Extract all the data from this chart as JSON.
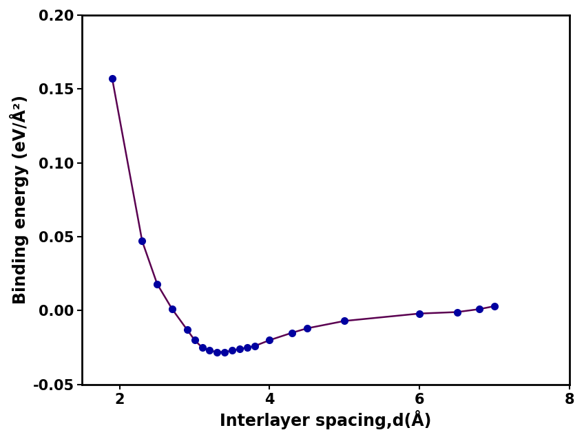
{
  "x": [
    1.9,
    2.3,
    2.5,
    2.7,
    2.9,
    3.0,
    3.1,
    3.2,
    3.3,
    3.4,
    3.5,
    3.6,
    3.7,
    3.8,
    4.0,
    4.3,
    4.5,
    5.0,
    6.0,
    6.5,
    6.8,
    7.0
  ],
  "y": [
    0.157,
    0.047,
    0.018,
    0.001,
    -0.013,
    -0.02,
    -0.025,
    -0.027,
    -0.028,
    -0.028,
    -0.027,
    -0.026,
    -0.025,
    -0.024,
    -0.02,
    -0.015,
    -0.012,
    -0.007,
    -0.002,
    -0.001,
    0.001,
    0.003
  ],
  "line_color": "#5a0050",
  "marker_color": "#0000a0",
  "marker_size": 7,
  "linewidth": 1.8,
  "xlabel": "Interlayer spacing,d(Å)",
  "ylabel": "Binding energy (eV/Å²)",
  "xlim": [
    1.5,
    8.0
  ],
  "ylim": [
    -0.05,
    0.2
  ],
  "xticks": [
    2,
    4,
    6,
    8
  ],
  "yticks": [
    -0.05,
    0.0,
    0.05,
    0.1,
    0.15,
    0.2
  ],
  "ytick_labels": [
    "-0.05",
    "0.00",
    "0.05",
    "0.10",
    "0.15",
    "0.20"
  ],
  "xtick_labels": [
    "2",
    "4",
    "6",
    "8"
  ],
  "xlabel_fontsize": 17,
  "ylabel_fontsize": 17,
  "tick_fontsize": 15,
  "background_color": "#ffffff",
  "plot_background": "#ffffff"
}
